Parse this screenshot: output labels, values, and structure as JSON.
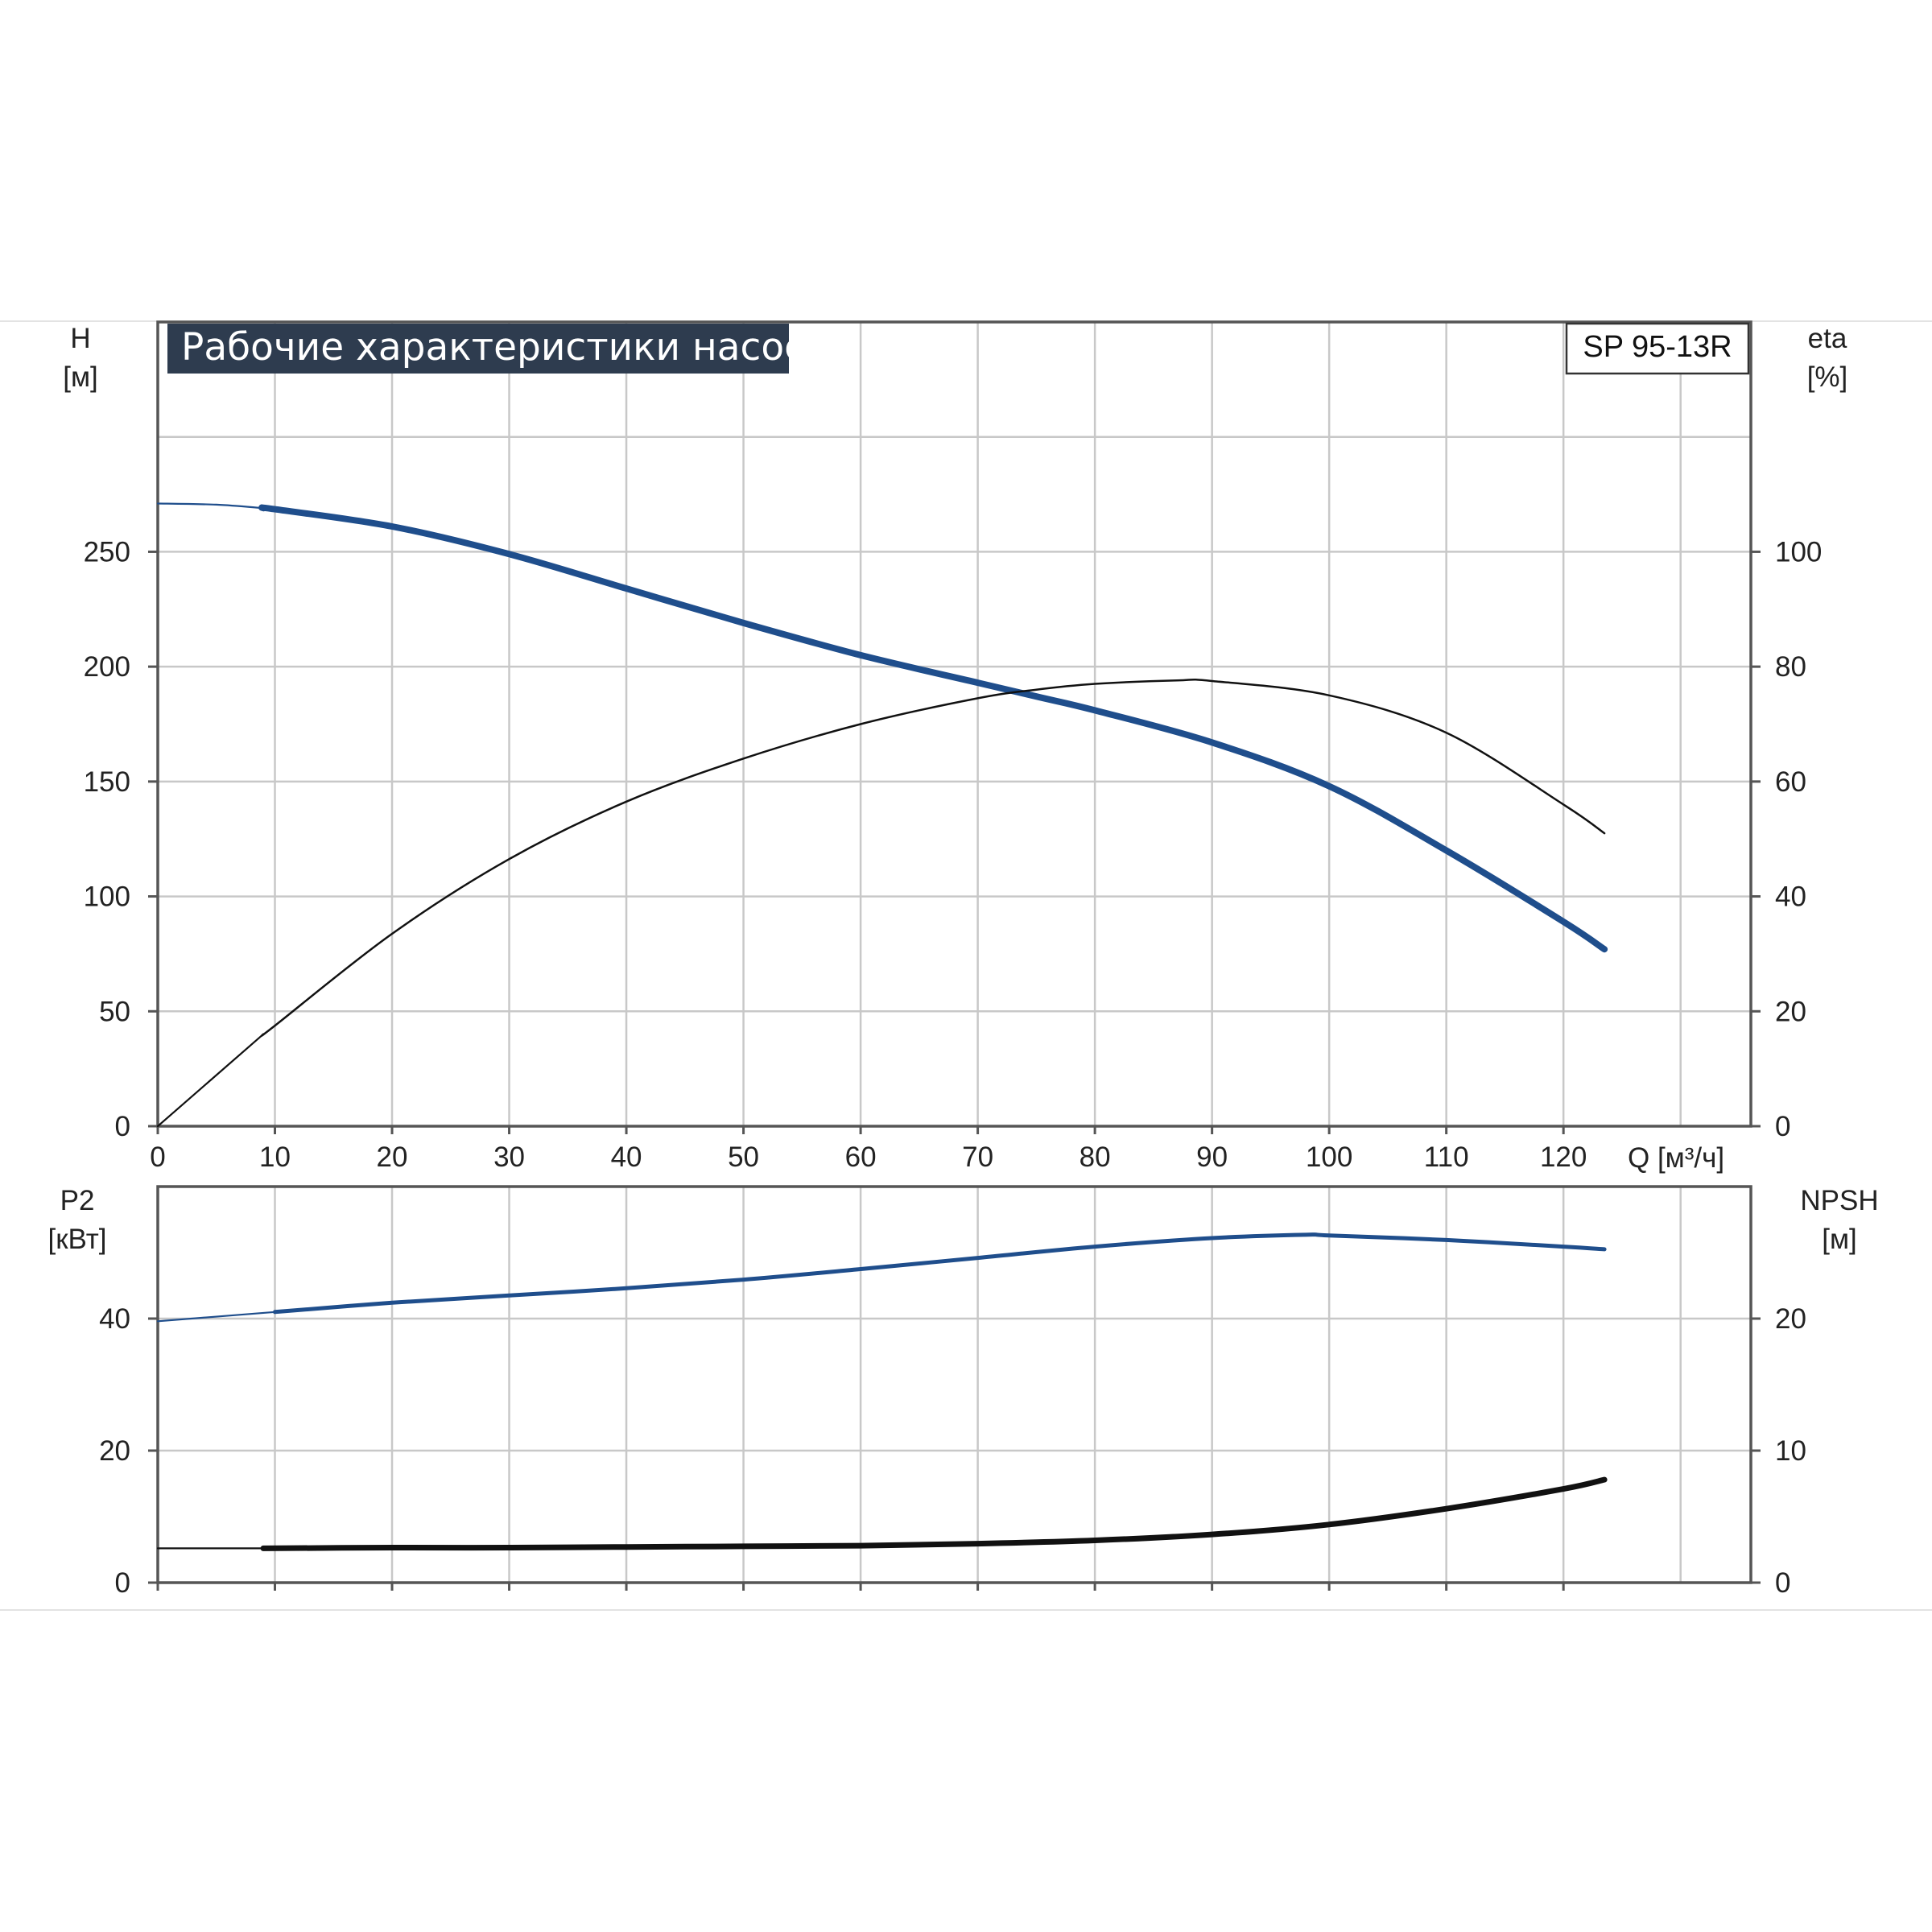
{
  "chart_data": [
    {
      "type": "line",
      "title": "Рабочие характеристики насоса",
      "model": "SP 95-13R",
      "xlabel": "Q [м³/ч]",
      "x_ticks": [
        0,
        10,
        20,
        30,
        40,
        50,
        60,
        70,
        80,
        90,
        100,
        110,
        120
      ],
      "xlim": [
        0,
        136
      ],
      "ylabel_left": {
        "name": "H",
        "unit": "[м]"
      },
      "ylim_left": [
        0,
        350
      ],
      "y_ticks_left": [
        0,
        50,
        100,
        150,
        200,
        250
      ],
      "ylabel_right": {
        "name": "eta",
        "unit": "[%]"
      },
      "ylim_right": [
        0,
        140
      ],
      "y_ticks_right": [
        0,
        20,
        40,
        60,
        80,
        100
      ],
      "grid": true,
      "series": [
        {
          "axis": "left",
          "color": "#1f4e8c",
          "x": [
            0,
            5,
            9,
            10,
            20,
            30,
            40,
            50,
            60,
            70,
            75,
            80,
            90,
            100,
            110,
            120,
            123.5
          ],
          "y": [
            271,
            270.5,
            269,
            268.5,
            261,
            249,
            234,
            219,
            205,
            193,
            187,
            181,
            167,
            148,
            120,
            89,
            77
          ]
        },
        {
          "axis": "right",
          "color": "#111111",
          "x": [
            0,
            9,
            10,
            20,
            30,
            40,
            50,
            60,
            70,
            75,
            80,
            87,
            90,
            100,
            110,
            120,
            123.5
          ],
          "y": [
            0,
            16,
            17.5,
            33.5,
            46.5,
            56.5,
            64,
            70,
            74.5,
            76,
            77,
            77.6,
            77.5,
            75,
            68.5,
            56,
            51
          ]
        }
      ]
    },
    {
      "type": "line",
      "ylabel_left": {
        "name": "P2",
        "unit": "[кВт]"
      },
      "ylim_left": [
        0,
        60
      ],
      "y_ticks_left": [
        0,
        20,
        40
      ],
      "ylabel_right": {
        "name": "NPSH",
        "unit": "[м]"
      },
      "ylim_right": [
        0,
        30
      ],
      "y_ticks_right": [
        0,
        10,
        20
      ],
      "grid": true,
      "series": [
        {
          "axis": "left",
          "color": "#1f4e8c",
          "x": [
            0,
            10,
            20,
            30,
            40,
            50,
            60,
            70,
            80,
            90,
            98,
            100,
            110,
            120,
            123.5
          ],
          "y": [
            39.6,
            41,
            42.4,
            43.5,
            44.6,
            45.9,
            47.5,
            49.2,
            50.9,
            52.2,
            52.7,
            52.6,
            51.9,
            50.9,
            50.5
          ]
        },
        {
          "axis": "right",
          "color": "#111111",
          "x": [
            0,
            8.7,
            9,
            20,
            30,
            40,
            50,
            60,
            70,
            80,
            90,
            100,
            110,
            120,
            123.5
          ],
          "y": [
            2.6,
            2.6,
            2.6,
            2.65,
            2.65,
            2.7,
            2.75,
            2.8,
            2.95,
            3.2,
            3.65,
            4.4,
            5.6,
            7.1,
            7.8
          ]
        }
      ]
    }
  ]
}
